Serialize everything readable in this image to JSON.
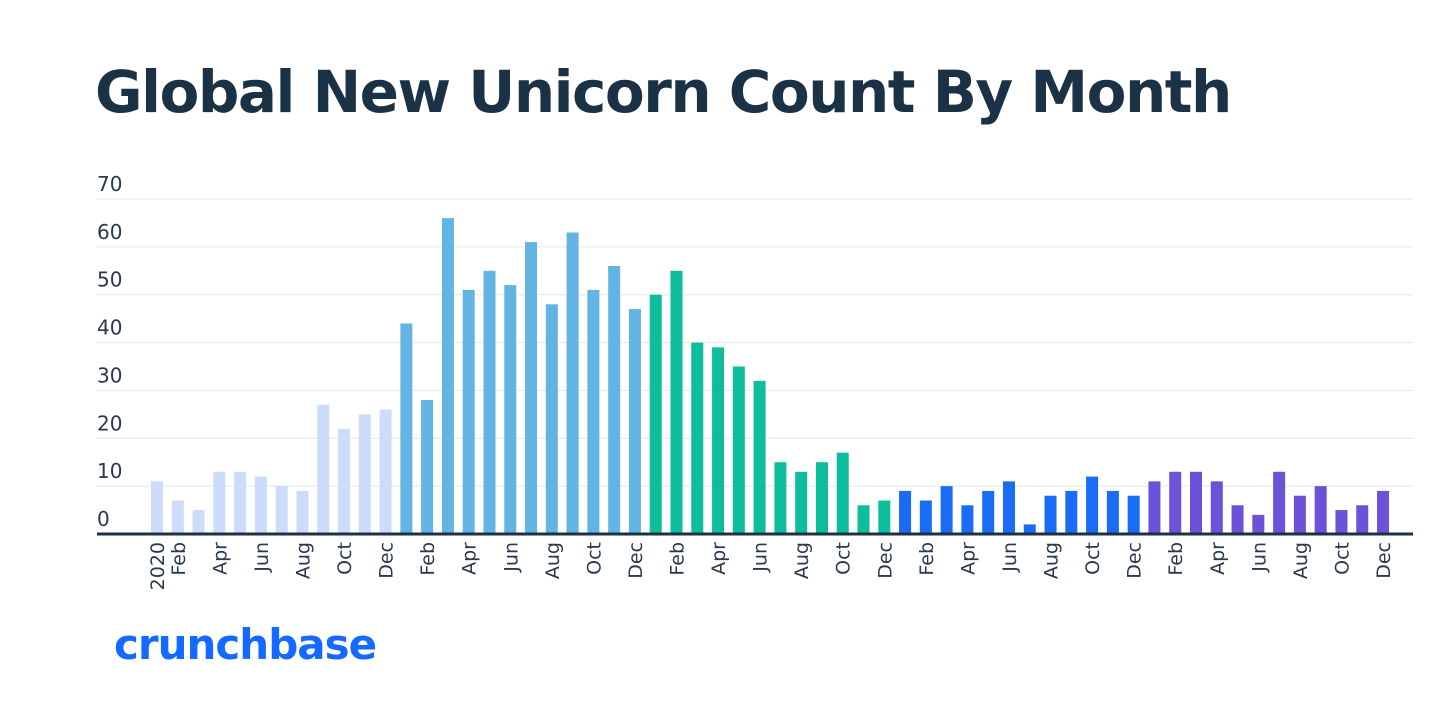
{
  "chart_data": {
    "type": "bar",
    "title": "Global New Unicorn Count By Month",
    "xlabel": "",
    "ylabel": "",
    "ylim": [
      0,
      70
    ],
    "yticks": [
      0,
      10,
      20,
      30,
      40,
      50,
      60,
      70
    ],
    "grid": true,
    "legend": "none",
    "categories": [
      "2020-01",
      "2020-02",
      "2020-03",
      "2020-04",
      "2020-05",
      "2020-06",
      "2020-07",
      "2020-08",
      "2020-09",
      "2020-10",
      "2020-11",
      "2020-12",
      "2021-01",
      "2021-02",
      "2021-03",
      "2021-04",
      "2021-05",
      "2021-06",
      "2021-07",
      "2021-08",
      "2021-09",
      "2021-10",
      "2021-11",
      "2021-12",
      "2022-01",
      "2022-02",
      "2022-03",
      "2022-04",
      "2022-05",
      "2022-06",
      "2022-07",
      "2022-08",
      "2022-09",
      "2022-10",
      "2022-11",
      "2022-12",
      "2023-01",
      "2023-02",
      "2023-03",
      "2023-04",
      "2023-05",
      "2023-06",
      "2023-07",
      "2023-08",
      "2023-09",
      "2023-10",
      "2023-11",
      "2023-12",
      "2024-01",
      "2024-02",
      "2024-03",
      "2024-04",
      "2024-05",
      "2024-06",
      "2024-07",
      "2024-08",
      "2024-09",
      "2024-10",
      "2024-11",
      "2024-12"
    ],
    "tick_labels": [
      "2020",
      "Feb",
      "",
      "Apr",
      "",
      "Jun",
      "",
      "Aug",
      "",
      "Oct",
      "",
      "Dec",
      "",
      "Feb",
      "",
      "Apr",
      "",
      "Jun",
      "",
      "Aug",
      "",
      "Oct",
      "",
      "Dec",
      "",
      "Feb",
      "",
      "Apr",
      "",
      "Jun",
      "",
      "Aug",
      "",
      "Oct",
      "",
      "Dec",
      "",
      "Feb",
      "",
      "Apr",
      "",
      "Jun",
      "",
      "Aug",
      "",
      "Oct",
      "",
      "Dec",
      "",
      "Feb",
      "",
      "Apr",
      "",
      "Jun",
      "",
      "Aug",
      "",
      "Oct",
      "",
      "Dec"
    ],
    "values": [
      11,
      7,
      5,
      13,
      13,
      12,
      10,
      9,
      27,
      22,
      25,
      26,
      44,
      28,
      66,
      51,
      55,
      52,
      61,
      48,
      63,
      51,
      56,
      47,
      50,
      55,
      40,
      39,
      35,
      32,
      15,
      13,
      15,
      17,
      6,
      7,
      9,
      7,
      10,
      6,
      9,
      11,
      2,
      8,
      9,
      12,
      9,
      8,
      11,
      13,
      13,
      11,
      6,
      4,
      13,
      8,
      10,
      5,
      6,
      9
    ],
    "year_colors": {
      "2020": "#ccdcfa",
      "2021": "#62b5e3",
      "2022": "#0ebd9c",
      "2023": "#1a6cf7",
      "2024": "#6b52d8"
    },
    "axis_color": "#1a3146",
    "grid_color": "#e6e6e6",
    "text_color": "#2a3a4a"
  },
  "branding": {
    "logo": "crunchbase",
    "color": "#146aff"
  }
}
